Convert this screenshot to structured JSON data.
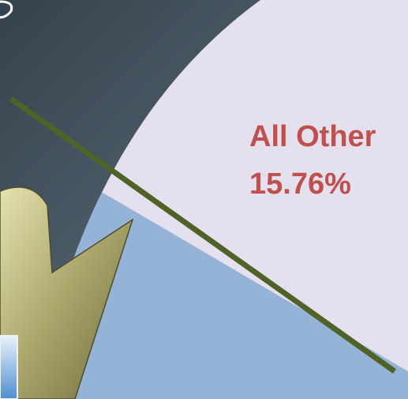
{
  "label": {
    "name": "All Other",
    "value_label": "15.76%"
  }
}
